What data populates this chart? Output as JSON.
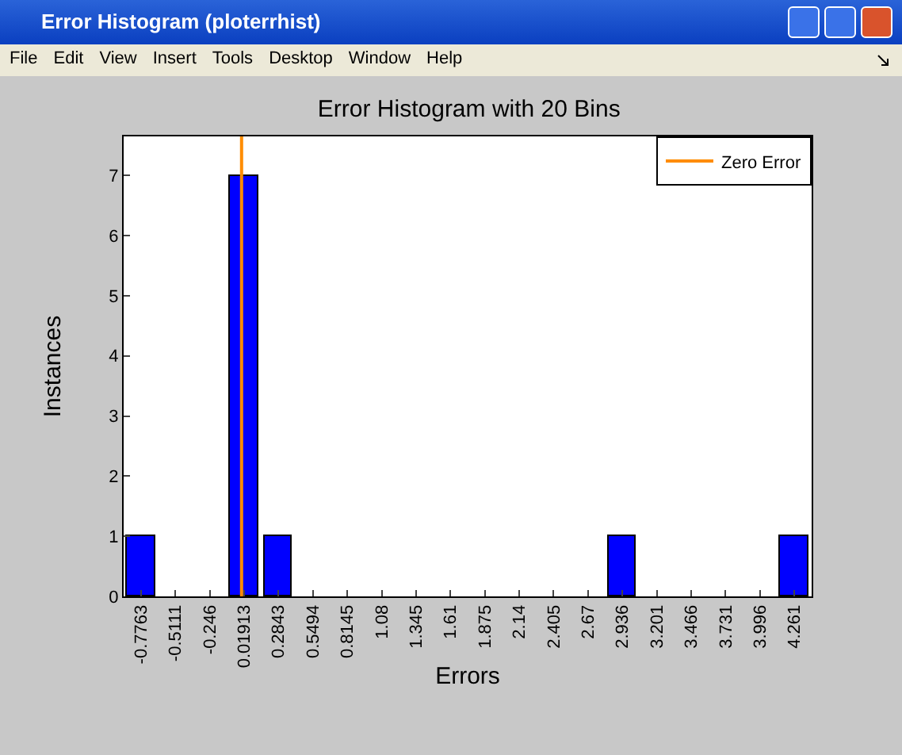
{
  "chart_data": {
    "type": "bar",
    "title": "Error Histogram with 20 Bins",
    "xlabel": "Errors",
    "ylabel": "Instances",
    "annotations": [
      "Error Histogram (ploterrhist)",
      "File",
      "Edit",
      "View",
      "Insert",
      "Tools",
      "Desktop",
      "Window",
      "Help"
    ],
    "x": [
      -0.7763,
      -0.5111,
      -0.246,
      0.01913,
      0.2843,
      0.5494,
      0.8145,
      1.08,
      1.345,
      1.61,
      1.875,
      2.14,
      2.405,
      2.67,
      2.936,
      3.201,
      3.466,
      3.731,
      3.996,
      4.261
    ],
    "series": [
      {
        "color": "#0000ff",
        "values": [
          1,
          0,
          0,
          7,
          1,
          0,
          0,
          0,
          0,
          0,
          0,
          0,
          0,
          0,
          1,
          0,
          0,
          0,
          0,
          1
        ]
      },
      {
        "type": "line",
        "name": "Zero Error",
        "color": "#ff8c00",
        "x": [
          0,
          0
        ],
        "values": [
          0,
          7.65
        ]
      }
    ],
    "xlim": [
      -0.909,
      4.394
    ],
    "xticks": [
      -0.7763,
      -0.5111,
      -0.246,
      0.01913,
      0.2843,
      0.5494,
      0.8145,
      1.08,
      1.345,
      1.61,
      1.875,
      2.14,
      2.405,
      2.67,
      2.936,
      3.201,
      3.466,
      3.731,
      3.996,
      4.261
    ],
    "ylim": [
      0,
      7.65
    ],
    "yticks": [
      0,
      1,
      2,
      3,
      4,
      5,
      6,
      7
    ],
    "legend": "top right",
    "grid": false
  }
}
